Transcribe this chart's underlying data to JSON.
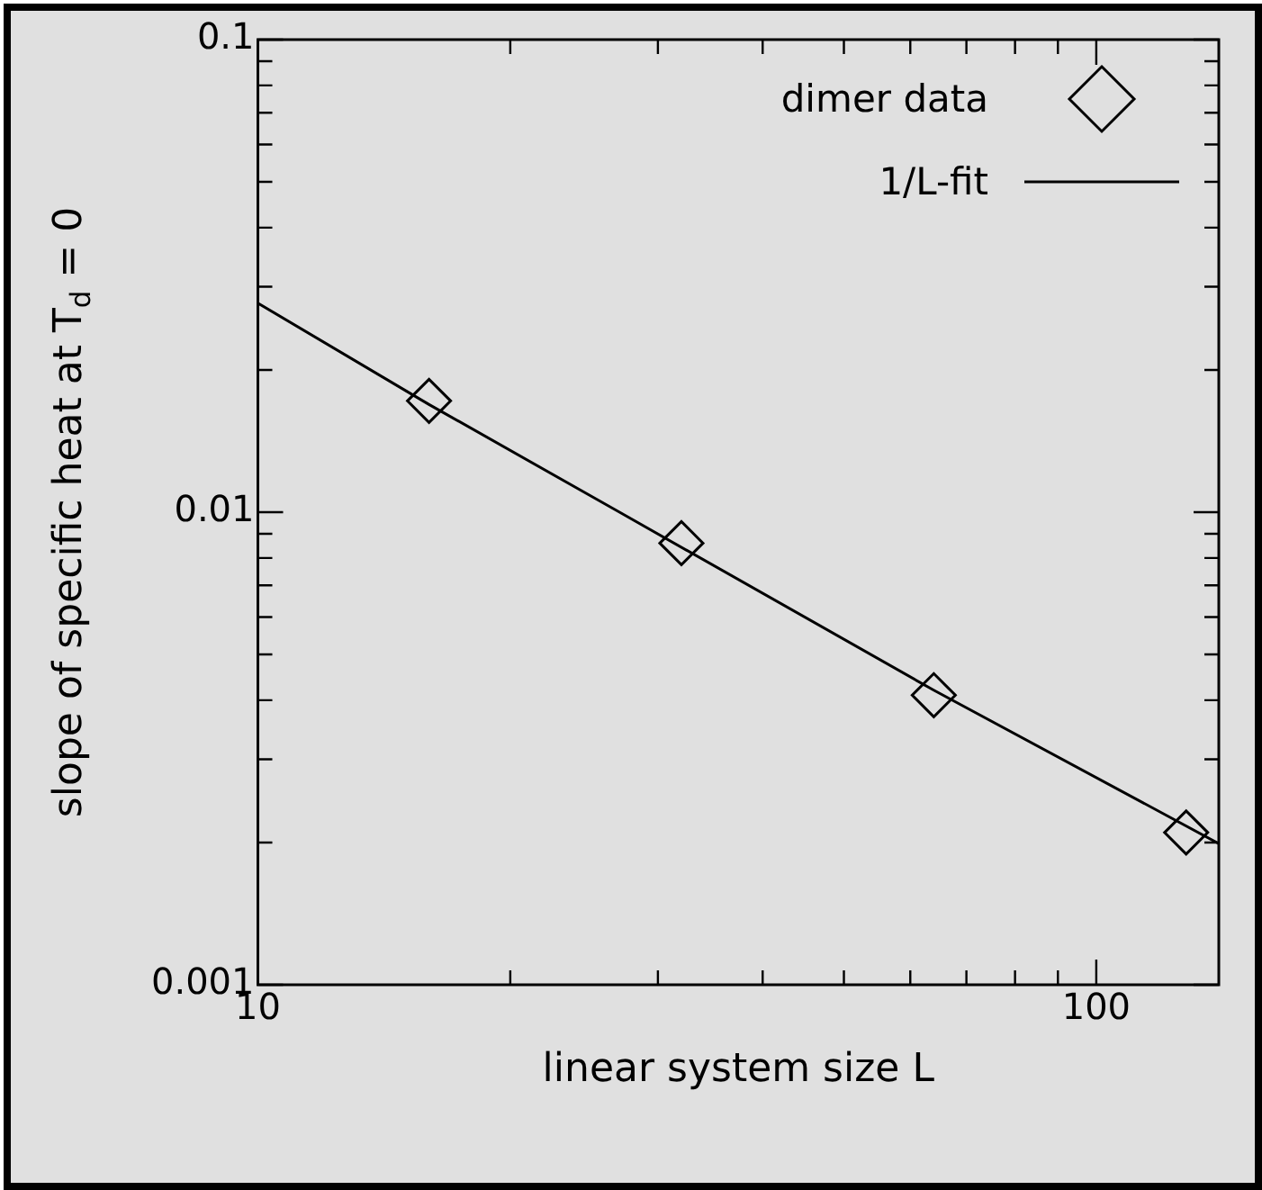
{
  "chart_data": {
    "type": "scatter",
    "xlabel": "linear system size L",
    "ylabel": "slope of specific heat at T$_{d}$ = 0",
    "log": "xy",
    "xlim": [
      10,
      140
    ],
    "ylim": [
      0.001,
      0.1
    ],
    "xticks": [
      10,
      {
        "value": 20,
        "label": null
      },
      {
        "value": 30,
        "label": null
      },
      {
        "value": 40,
        "label": null
      },
      {
        "value": 50,
        "label": null
      },
      {
        "value": 60,
        "label": null
      },
      {
        "value": 70,
        "label": null
      },
      {
        "value": 80,
        "label": null
      },
      {
        "value": 90,
        "label": null
      },
      100
    ],
    "yticks": [
      0.001,
      {
        "value": 0.002,
        "label": null
      },
      {
        "value": 0.003,
        "label": null
      },
      {
        "value": 0.004,
        "label": null
      },
      {
        "value": 0.005,
        "label": null
      },
      {
        "value": 0.006,
        "label": null
      },
      {
        "value": 0.007,
        "label": null
      },
      {
        "value": 0.008,
        "label": null
      },
      {
        "value": 0.009,
        "label": null
      },
      0.01,
      {
        "value": 0.02,
        "label": null
      },
      {
        "value": 0.03,
        "label": null
      },
      {
        "value": 0.04,
        "label": null
      },
      {
        "value": 0.05,
        "label": null
      },
      {
        "value": 0.06,
        "label": null
      },
      {
        "value": 0.07,
        "label": null
      },
      {
        "value": 0.08,
        "label": null
      },
      {
        "value": 0.09,
        "label": null
      },
      0.1
    ],
    "legend": "top right",
    "grid": false,
    "marker": "diamond",
    "series": [
      {
        "name": "dimer data",
        "color": "#000000",
        "x": [
          16,
          32,
          64,
          128
        ],
        "values": [
          0.0172,
          0.0086,
          0.0041,
          0.0021
        ]
      },
      {
        "name": "1/L-fit",
        "type": "line",
        "color": "#000000",
        "line_style": "solid",
        "marker": "none",
        "x": [
          10,
          16,
          27,
          64,
          140
        ],
        "values": [
          0.0277,
          0.0169,
          0.01,
          0.0042,
          0.00199
        ]
      }
    ]
  }
}
